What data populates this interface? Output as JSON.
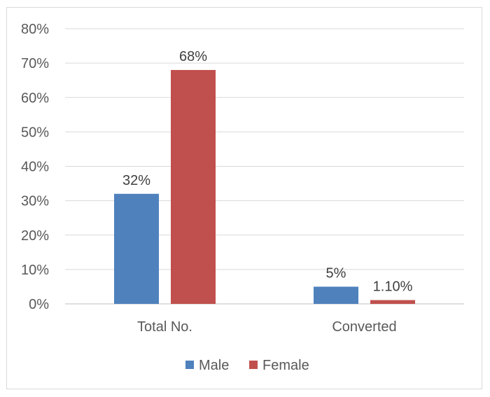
{
  "chart_data": {
    "type": "bar",
    "categories": [
      "Total No.",
      "Converted"
    ],
    "series": [
      {
        "name": "Male",
        "color": "#4f81bd",
        "values": [
          32,
          5
        ],
        "labels": [
          "32%",
          "5%"
        ]
      },
      {
        "name": "Female",
        "color": "#c0504d",
        "values": [
          68,
          1.1
        ],
        "labels": [
          "68%",
          "1.10%"
        ]
      }
    ],
    "ylim": [
      0,
      80
    ],
    "yticks": [
      0,
      10,
      20,
      30,
      40,
      50,
      60,
      70,
      80
    ],
    "ytick_labels": [
      "0%",
      "10%",
      "20%",
      "30%",
      "40%",
      "50%",
      "60%",
      "70%",
      "80%"
    ],
    "grid": true,
    "legend_position": "bottom",
    "title": "",
    "xlabel": "",
    "ylabel": ""
  }
}
